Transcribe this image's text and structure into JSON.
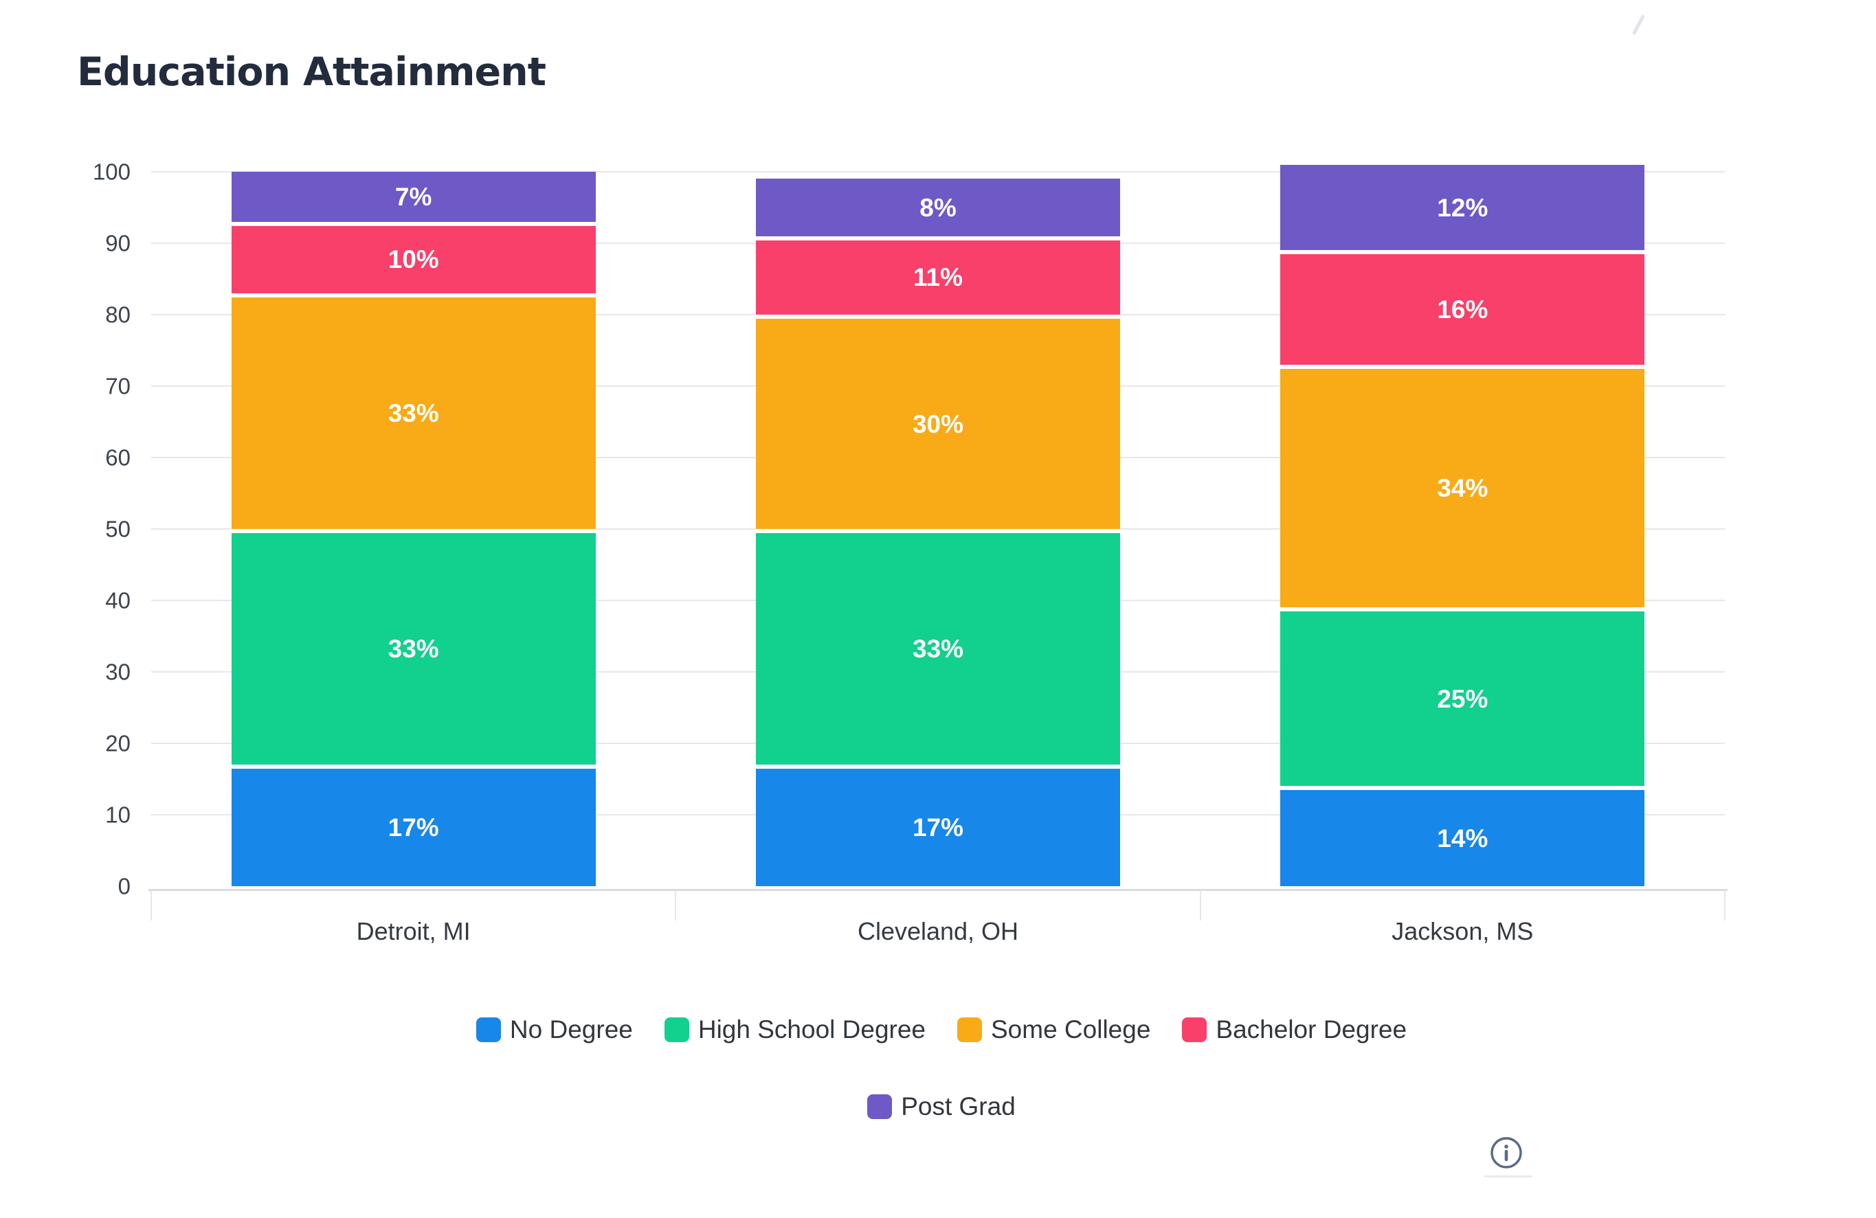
{
  "title": "Education Attainment",
  "chart_data": {
    "type": "bar",
    "stacked": true,
    "title": "Education Attainment",
    "categories": [
      "Detroit, MI",
      "Cleveland, OH",
      "Jackson, MS"
    ],
    "series": [
      {
        "name": "No Degree",
        "color": "#1787E9",
        "values": [
          17,
          17,
          14
        ]
      },
      {
        "name": "High School Degree",
        "color": "#12D08D",
        "values": [
          33,
          33,
          25
        ]
      },
      {
        "name": "Some College",
        "color": "#F8AB16",
        "values": [
          33,
          30,
          34
        ]
      },
      {
        "name": "Bachelor Degree",
        "color": "#F8406A",
        "values": [
          10,
          11,
          16
        ]
      },
      {
        "name": "Post Grad",
        "color": "#6E59C7",
        "values": [
          7,
          8,
          12
        ]
      }
    ],
    "value_suffix": "%",
    "xlabel": "",
    "ylabel": "",
    "ylim": [
      0,
      100
    ],
    "yticks": [
      0,
      10,
      20,
      30,
      40,
      50,
      60,
      70,
      80,
      90,
      100
    ],
    "grid": true,
    "legend_position": "bottom",
    "legend_row_break": 4
  },
  "ui": {
    "background": "#FFFFFF",
    "title_color": "#222C3D",
    "axis_label_color": "#343A41",
    "tick_label_color": "#3E444C",
    "legend_label_color": "#32373D",
    "grid_color": "#E5E7EA",
    "axis_line_color": "#D9DCE0",
    "bar_label_color": "#FFFFFF",
    "info_icon_color": "#5A6A86",
    "info_icon": "info-circle-icon",
    "info_icon_glyph": "i"
  }
}
